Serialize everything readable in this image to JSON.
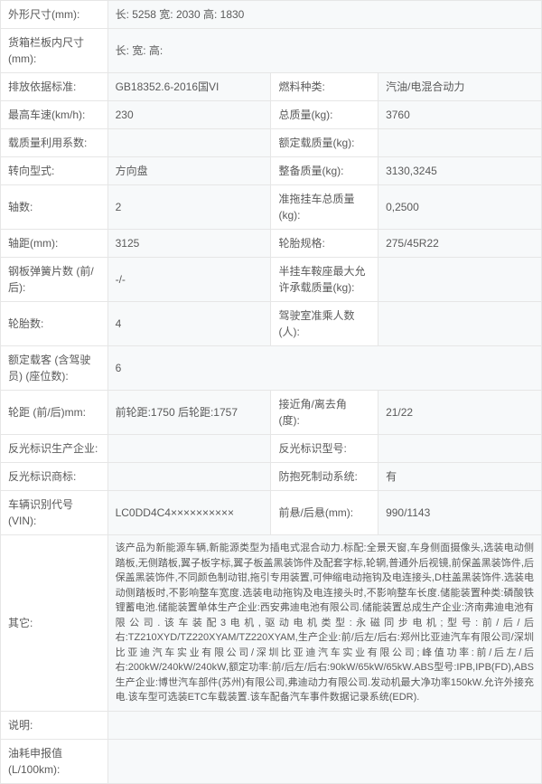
{
  "rows": [
    {
      "type": "full",
      "label": "外形尺寸(mm):",
      "value": "长: 5258 宽: 2030 高: 1830"
    },
    {
      "type": "full",
      "label": "货箱栏板内尺寸(mm):",
      "value": "长:    宽:    高:"
    },
    {
      "type": "split",
      "label1": "排放依据标准:",
      "value1": "GB18352.6-2016国VI",
      "label2": "燃料种类:",
      "value2": "汽油/电混合动力"
    },
    {
      "type": "split",
      "label1": "最高车速(km/h):",
      "value1": "230",
      "label2": "总质量(kg):",
      "value2": "3760"
    },
    {
      "type": "split",
      "label1": "载质量利用系数:",
      "value1": "",
      "label2": "额定载质量(kg):",
      "value2": ""
    },
    {
      "type": "split",
      "label1": "转向型式:",
      "value1": "方向盘",
      "label2": "整备质量(kg):",
      "value2": "3130,3245"
    },
    {
      "type": "split",
      "label1": "轴数:",
      "value1": "2",
      "label2": "准拖挂车总质量(kg):",
      "value2": "0,2500"
    },
    {
      "type": "split",
      "label1": "轴距(mm):",
      "value1": "3125",
      "label2": "轮胎规格:",
      "value2": "275/45R22"
    },
    {
      "type": "split",
      "label1": "钢板弹簧片数 (前/后):",
      "value1": "-/-",
      "label2": "半挂车鞍座最大允许承载质量(kg):",
      "value2": ""
    },
    {
      "type": "split",
      "label1": "轮胎数:",
      "value1": "4",
      "label2": "驾驶室准乘人数 (人):",
      "value2": ""
    },
    {
      "type": "full",
      "label": "额定载客 (含驾驶员) (座位数):",
      "value": "6"
    },
    {
      "type": "split",
      "label1": "轮距 (前/后)mm:",
      "value1": "前轮距:1750 后轮距:1757",
      "label2": "接近角/离去角 (度):",
      "value2": "21/22"
    },
    {
      "type": "split",
      "label1": "反光标识生产企业:",
      "value1": "",
      "label2": "反光标识型号:",
      "value2": ""
    },
    {
      "type": "split",
      "label1": "反光标识商标:",
      "value1": "",
      "label2": "防抱死制动系统:",
      "value2": "有"
    },
    {
      "type": "split",
      "label1": "车辆识别代号 (VIN):",
      "value1": "LC0DD4C4××××××××××",
      "label2": "前悬/后悬(mm):",
      "value2": "990/1143"
    },
    {
      "type": "desc",
      "label": "其它:",
      "value": "该产品为新能源车辆,新能源类型为插电式混合动力.标配:全景天窗,车身侧面摄像头,选装电动侧踏板,无侧踏板,翼子板字标,翼子板盖黑装饰件及配套字标,轮辋,普通外后视镜,前保盖黑装饰件,后保盖黑装饰件,不同颜色制动钳,拖引专用装置,可伸缩电动拖钩及电连接头,D柱盖黑装饰件.选装电动侧踏板时,不影响整车宽度.选装电动拖钩及电连接头时,不影响整车长度.储能装置种类:磷酸铁锂蓄电池.储能装置单体生产企业:西安弗迪电池有限公司.储能装置总成生产企业:济南弗迪电池有限公司.该车装配3电机,驱动电机类型:永磁同步电机;型号:前/后/后右:TZ210XYD/TZ220XYAM/TZ220XYAM,生产企业:前/后左/后右:郑州比亚迪汽车有限公司/深圳比亚迪汽车实业有限公司/深圳比亚迪汽车实业有限公司;峰值功率:前/后左/后右:200kW/240kW/240kW,额定功率:前/后左/后右:90kW/65kW/65kW.ABS型号:IPB,IPB(FD),ABS生产企业:博世汽车部件(苏州)有限公司,弗迪动力有限公司.发动机最大净功率150kW.允许外接充电.该车型可选装ETC车载装置.该车配备汽车事件数据记录系统(EDR)."
    },
    {
      "type": "full",
      "label": "说明:",
      "value": ""
    },
    {
      "type": "full",
      "label": "油耗申报值(L/100km):",
      "value": ""
    }
  ]
}
